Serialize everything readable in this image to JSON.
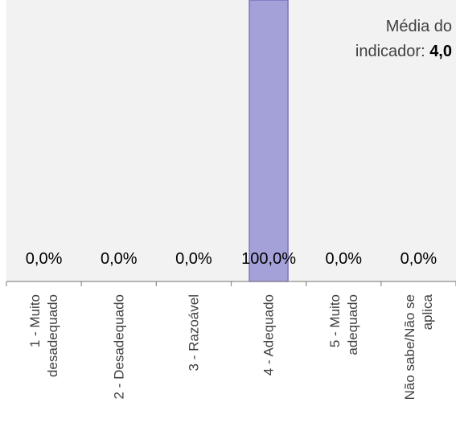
{
  "chart_data": {
    "type": "bar",
    "categories": [
      [
        "1 - Muito",
        "desadequado"
      ],
      [
        "2 - Desadequado"
      ],
      [
        "3 - Razoável"
      ],
      [
        "4 - Adequado"
      ],
      [
        "5 - Muito",
        "adequado"
      ],
      [
        "Não sabe/Não se",
        "aplica"
      ]
    ],
    "values": [
      0.0,
      0.0,
      0.0,
      100.0,
      0.0,
      0.0
    ],
    "data_labels": [
      "0,0%",
      "0,0%",
      "0,0%",
      "100,0%",
      "0,0%",
      "0,0%"
    ],
    "ylim": [
      0,
      100
    ],
    "bar_color": "#a4a0d8",
    "bar_border_color": "#7a72c0",
    "plot_background": "#f2f2f2",
    "grid": false,
    "legend": "none"
  },
  "annotation": {
    "line1": "Média do",
    "line2_prefix": "indicador: ",
    "value": "4,0"
  }
}
